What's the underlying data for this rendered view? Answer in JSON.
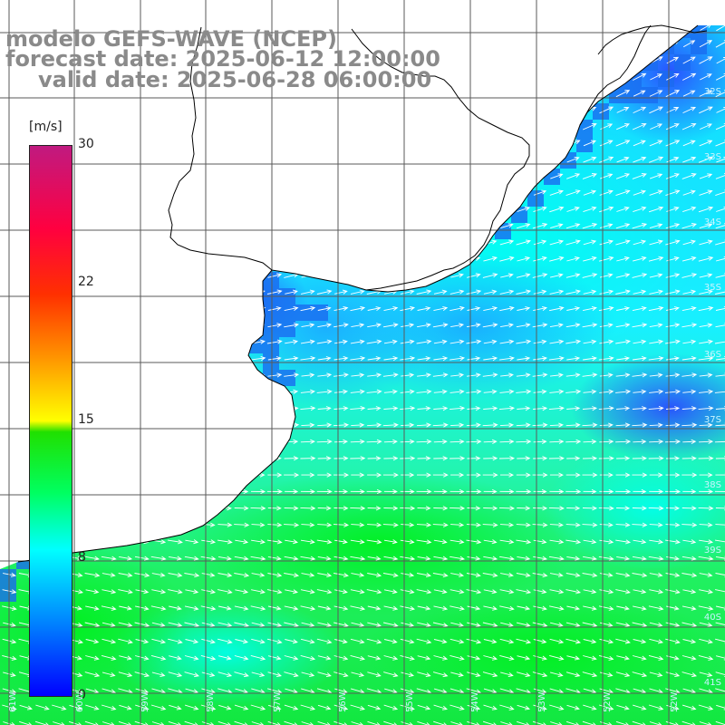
{
  "title": {
    "model": "modelo GEFS-WAVE (NCEP)",
    "forecast": "forecast date: 2025-06-12 12:00:00",
    "valid": "valid date: 2025-06-28 06:00:00"
  },
  "colorbar": {
    "unit": "[m/s]",
    "ticks": [
      "30",
      "22",
      "15",
      "8",
      "0"
    ],
    "tick_values": [
      30,
      22,
      15,
      8,
      0
    ],
    "range": [
      0,
      30
    ],
    "colors": [
      "#0000ff",
      "#00b4ff",
      "#00ffff",
      "#00ff40",
      "#00e000",
      "#ffff00",
      "#ff8000",
      "#ff0000",
      "#ff0060",
      "#c01a80"
    ]
  },
  "grid_labels": {
    "lat": [
      "32S",
      "33S",
      "34S",
      "35S",
      "36S",
      "37S",
      "38S",
      "39S",
      "40S",
      "41S"
    ],
    "lon": [
      "61W",
      "60W",
      "59W",
      "58W",
      "57W",
      "56W",
      "55W",
      "54W",
      "53W",
      "52W"
    ]
  },
  "colors": {
    "land": "#ffffff",
    "coast": "#000000",
    "grid": "#5a5a5a",
    "arrows": "#ffffff",
    "title": "#8a8a8a"
  }
}
